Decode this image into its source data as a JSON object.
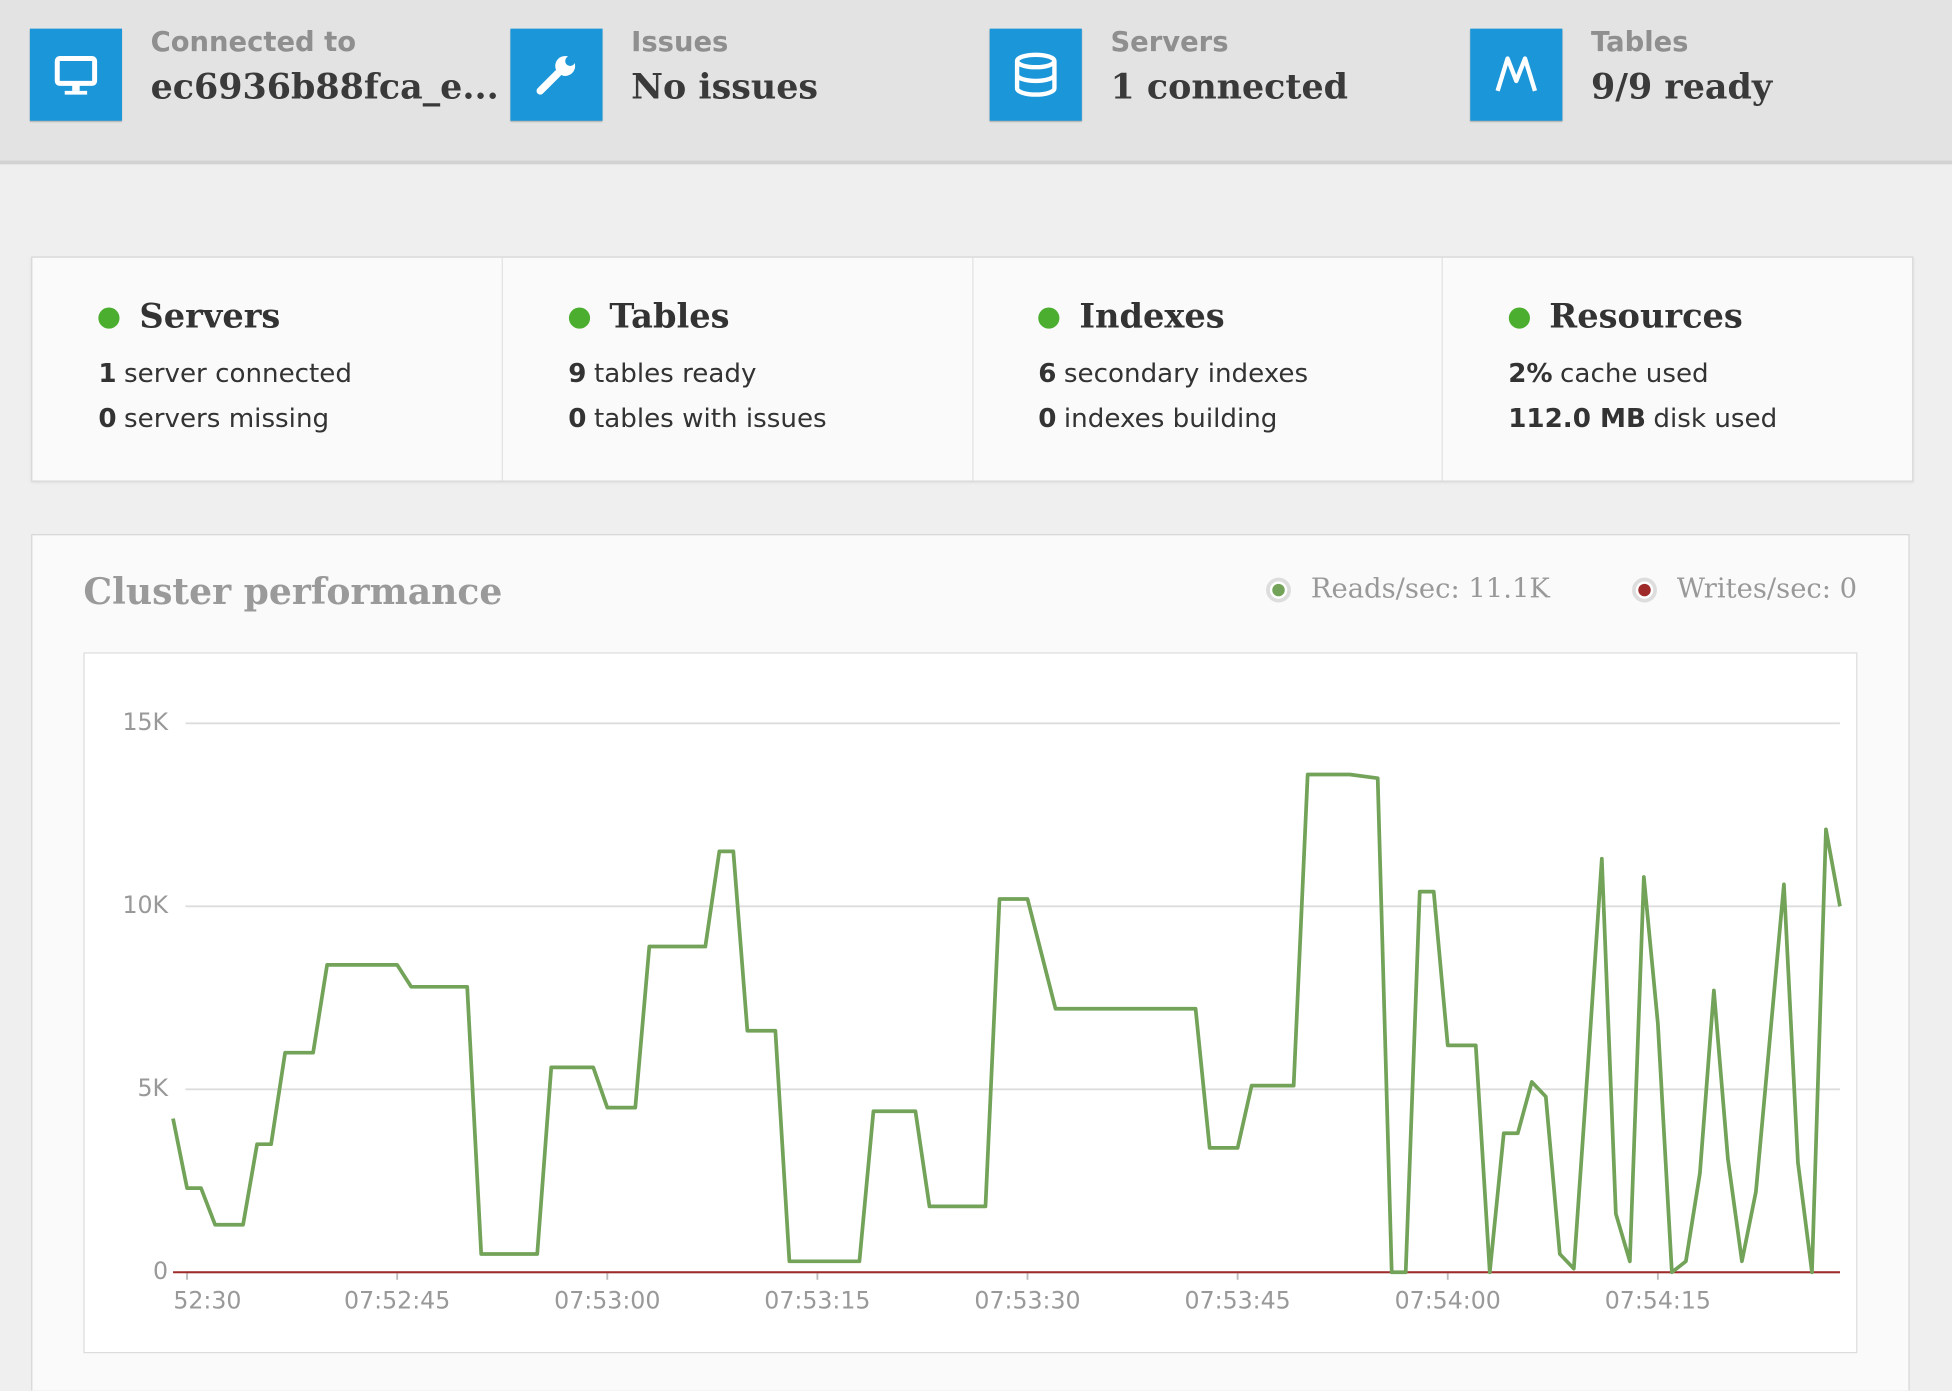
{
  "topbar": [
    {
      "label": "Connected to",
      "value": "ec6936b88fca_e..."
    },
    {
      "label": "Issues",
      "value": "No issues"
    },
    {
      "label": "Servers",
      "value": "1 connected"
    },
    {
      "label": "Tables",
      "value": "9/9 ready"
    }
  ],
  "summary": [
    {
      "title": "Servers",
      "lines": [
        {
          "count": "1",
          "text": "server connected"
        },
        {
          "count": "0",
          "text": "servers missing"
        }
      ]
    },
    {
      "title": "Tables",
      "lines": [
        {
          "count": "9",
          "text": "tables ready"
        },
        {
          "count": "0",
          "text": "tables with issues"
        }
      ]
    },
    {
      "title": "Indexes",
      "lines": [
        {
          "count": "6",
          "text": "secondary indexes"
        },
        {
          "count": "0",
          "text": "indexes building"
        }
      ]
    },
    {
      "title": "Resources",
      "lines": [
        {
          "count": "2%",
          "text": "cache used"
        },
        {
          "count": "112.0 MB",
          "text": "disk used"
        }
      ]
    }
  ],
  "chart_data": {
    "type": "line",
    "title": "Cluster performance",
    "x": [
      "07:52:29",
      "07:52:30",
      "07:52:31",
      "07:52:32",
      "07:52:34",
      "07:52:35",
      "07:52:36",
      "07:52:37",
      "07:52:39",
      "07:52:40",
      "07:52:45",
      "07:52:46",
      "07:52:50",
      "07:52:51",
      "07:52:55",
      "07:52:56",
      "07:52:59",
      "07:53:00",
      "07:53:02",
      "07:53:03",
      "07:53:07",
      "07:53:08",
      "07:53:09",
      "07:53:10",
      "07:53:12",
      "07:53:13",
      "07:53:18",
      "07:53:19",
      "07:53:22",
      "07:53:23",
      "07:53:27",
      "07:53:28",
      "07:53:30",
      "07:53:32",
      "07:53:42",
      "07:53:43",
      "07:53:45",
      "07:53:46",
      "07:53:49",
      "07:53:50",
      "07:53:53",
      "07:53:55",
      "07:53:56",
      "07:53:57",
      "07:53:58",
      "07:53:59",
      "07:54:00",
      "07:54:02",
      "07:54:03",
      "07:54:04",
      "07:54:05",
      "07:54:06",
      "07:54:07",
      "07:54:08",
      "07:54:09",
      "07:54:10",
      "07:54:11",
      "07:54:12",
      "07:54:13",
      "07:54:14",
      "07:54:15",
      "07:54:16",
      "07:54:17",
      "07:54:18",
      "07:54:19",
      "07:54:20",
      "07:54:21",
      "07:54:22",
      "07:54:24",
      "07:54:25",
      "07:54:26",
      "07:54:27",
      "07:54:28"
    ],
    "series": [
      {
        "name": "Reads/sec: 11.1K",
        "color": "#72a359",
        "values": [
          4200,
          2300,
          2300,
          1300,
          1300,
          3500,
          3500,
          6000,
          6000,
          8400,
          8400,
          7800,
          7800,
          500,
          500,
          5600,
          5600,
          4500,
          4500,
          8900,
          8900,
          11500,
          11500,
          6600,
          6600,
          300,
          300,
          4400,
          4400,
          1800,
          1800,
          10200,
          10200,
          7200,
          7200,
          3400,
          3400,
          5100,
          5100,
          13600,
          13600,
          13500,
          0,
          0,
          10400,
          10400,
          6200,
          6200,
          0,
          3800,
          3800,
          5200,
          4800,
          500,
          100,
          5600,
          11300,
          1600,
          300,
          10800,
          6800,
          0,
          300,
          2700,
          7700,
          3100,
          300,
          2200,
          10600,
          3000,
          0,
          12100,
          10000
        ]
      },
      {
        "name": "Writes/sec: 0",
        "color": "#9e2a2a",
        "values": [
          0,
          0,
          0,
          0,
          0,
          0,
          0,
          0,
          0,
          0,
          0,
          0,
          0,
          0,
          0,
          0,
          0,
          0,
          0,
          0,
          0,
          0,
          0,
          0,
          0,
          0,
          0,
          0,
          0,
          0,
          0,
          0,
          0,
          0,
          0,
          0,
          0,
          0,
          0,
          0,
          0,
          0,
          0,
          0,
          0,
          0,
          0,
          0,
          0,
          0,
          0,
          0,
          0,
          0,
          0,
          0,
          0,
          0,
          0,
          0,
          0,
          0,
          0,
          0,
          0,
          0,
          0,
          0,
          0,
          0,
          0,
          0,
          0
        ]
      }
    ],
    "xlim": [
      "07:52:29",
      "07:54:28"
    ],
    "xticks": [
      {
        "value": "07:52:30",
        "label": "52:30"
      },
      "07:52:45",
      "07:53:00",
      "07:53:15",
      "07:53:30",
      "07:53:45",
      "07:54:00",
      "07:54:15"
    ],
    "ylim": [
      0,
      15000
    ],
    "yticks": [
      0,
      {
        "value": 5000,
        "label": "5K"
      },
      {
        "value": 10000,
        "label": "10K"
      },
      {
        "value": 15000,
        "label": "15K"
      }
    ],
    "grid": true
  }
}
